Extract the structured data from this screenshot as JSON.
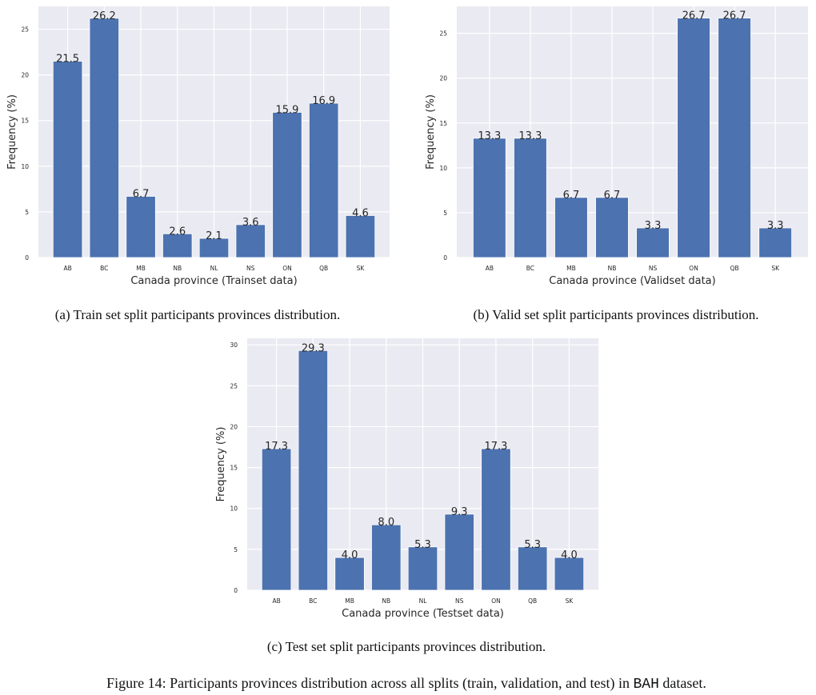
{
  "colors": {
    "bar": "#4c72b0",
    "plot_bg": "#eaeaf2",
    "grid": "#ffffff",
    "text": "#262626"
  },
  "chart_data": [
    {
      "type": "bar",
      "categories": [
        "AB",
        "BC",
        "MB",
        "NB",
        "NL",
        "NS",
        "ON",
        "QB",
        "SK"
      ],
      "values": [
        21.5,
        26.2,
        6.7,
        2.6,
        2.1,
        3.6,
        15.9,
        16.9,
        4.6
      ],
      "data_labels": [
        "21.5",
        "26.2",
        "6.7",
        "2.6",
        "2.1",
        "3.6",
        "15.9",
        "16.9",
        "4.6"
      ],
      "xlabel": "Canada province (Trainset data)",
      "ylabel": "Frequency (%)",
      "yticks": [
        0,
        5,
        10,
        15,
        20,
        25
      ],
      "ylim": [
        0,
        27.5
      ],
      "grid": true,
      "caption": "(a) Train set split participants provinces distribution."
    },
    {
      "type": "bar",
      "categories": [
        "AB",
        "BC",
        "MB",
        "NB",
        "NS",
        "ON",
        "QB",
        "SK"
      ],
      "values": [
        13.3,
        13.3,
        6.7,
        6.7,
        3.3,
        26.7,
        26.7,
        3.3
      ],
      "data_labels": [
        "13.3",
        "13.3",
        "6.7",
        "6.7",
        "3.3",
        "26.7",
        "26.7",
        "3.3"
      ],
      "xlabel": "Canada province (Validset data)",
      "ylabel": "Frequency (%)",
      "yticks": [
        0,
        5,
        10,
        15,
        20,
        25
      ],
      "ylim": [
        0,
        28
      ],
      "grid": true,
      "caption": "(b) Valid set split participants provinces distribution."
    },
    {
      "type": "bar",
      "categories": [
        "AB",
        "BC",
        "MB",
        "NB",
        "NL",
        "NS",
        "ON",
        "QB",
        "SK"
      ],
      "values": [
        17.3,
        29.3,
        4.0,
        8.0,
        5.3,
        9.3,
        17.3,
        5.3,
        4.0
      ],
      "data_labels": [
        "17.3",
        "29.3",
        "4.0",
        "8.0",
        "5.3",
        "9.3",
        "17.3",
        "5.3",
        "4.0"
      ],
      "xlabel": "Canada province (Testset data)",
      "ylabel": "Frequency (%)",
      "yticks": [
        0,
        5,
        10,
        15,
        20,
        25,
        30
      ],
      "ylim": [
        0,
        30.8
      ],
      "grid": true,
      "caption": "(c) Test set split participants provinces distribution."
    }
  ],
  "figure_caption": {
    "prefix": "Figure 14: Participants provinces distribution across all splits (train, validation, and test) in ",
    "dataset": "BAH",
    "suffix": " dataset."
  }
}
